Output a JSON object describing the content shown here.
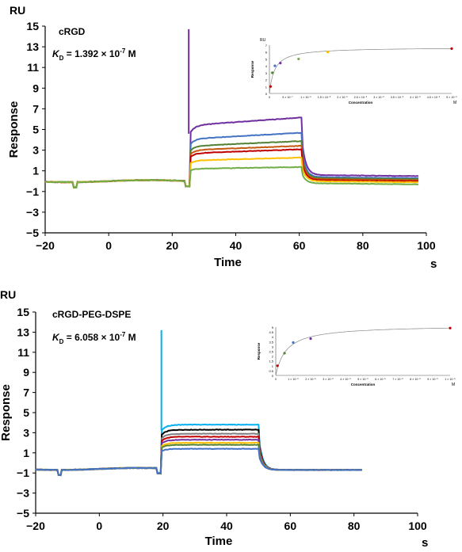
{
  "chart_data": [
    {
      "type": "line",
      "ylabel_unit": "RU",
      "ylabel": "Response",
      "xlabel": "Time",
      "x_unit": "s",
      "xlim": [
        -20,
        100
      ],
      "ylim": [
        -5,
        15
      ],
      "x_ticks": [
        "−20",
        "0",
        "20",
        "40",
        "60",
        "80",
        "100"
      ],
      "y_ticks": [
        "−5",
        "−3",
        "−1",
        "1",
        "3",
        "5",
        "7",
        "9",
        "11",
        "13",
        "15"
      ],
      "annotation": "cRGD",
      "kd_symbol": "K",
      "kd_sub": "D",
      "kd_value": " = 1.392 × 10",
      "kd_exp": "-7",
      "kd_unit": " M",
      "spike": {
        "x": 25.2,
        "y": 14.7
      },
      "series": [
        {
          "color": "#7030a0",
          "plateau": 5.4,
          "dissoc": 0.6
        },
        {
          "color": "#4472c4",
          "plateau": 4.1,
          "dissoc": 0.4
        },
        {
          "color": "#548235",
          "plateau": 3.4,
          "dissoc": 0.3
        },
        {
          "color": "#c55a11",
          "plateau": 3.0,
          "dissoc": 0.2
        },
        {
          "color": "#c00000",
          "plateau": 2.7,
          "dissoc": 0.1
        },
        {
          "color": "#ffc000",
          "plateau": 2.0,
          "dissoc": 0.0
        },
        {
          "color": "#70ad47",
          "plateau": 1.2,
          "dissoc": -0.2
        }
      ],
      "inset": {
        "ylabel_unit": "RU",
        "ylabel": "Response",
        "xlabel": "Concentration",
        "x_unit": "M",
        "ylim": [
          0,
          7
        ],
        "y_ticks": [
          "0",
          "1",
          "2",
          "3",
          "4",
          "5",
          "6",
          "7"
        ],
        "xlim": [
          0,
          5e-06
        ],
        "x_ticks": [
          "0",
          "5 × 10⁻⁷",
          "1 × 10⁻⁶",
          "1.5 × 10⁻⁶",
          "2 × 10⁻⁶",
          "2.5 × 10⁻⁶",
          "3 × 10⁻⁶",
          "3.5 × 10⁻⁶",
          "4 × 10⁻⁶",
          "4.5 × 10⁻⁶",
          "5 × 10⁻⁶"
        ],
        "points": [
          {
            "x": 3e-08,
            "y": 1.0,
            "color": "#c00000"
          },
          {
            "x": 8e-08,
            "y": 3.0,
            "color": "#548235"
          },
          {
            "x": 1.5e-07,
            "y": 4.0,
            "color": "#4472c4"
          },
          {
            "x": 3e-07,
            "y": 4.4,
            "color": "#7030a0"
          },
          {
            "x": 8e-07,
            "y": 5.0,
            "color": "#70ad47"
          },
          {
            "x": 1.6e-06,
            "y": 6.0,
            "color": "#ffc000"
          },
          {
            "x": 5e-06,
            "y": 6.5,
            "color": "#c00000"
          }
        ]
      }
    },
    {
      "type": "line",
      "ylabel_unit": "RU",
      "ylabel": "Response",
      "xlabel": "Time",
      "x_unit": "s",
      "xlim": [
        -20,
        100
      ],
      "ylim": [
        -5,
        15
      ],
      "x_ticks": [
        "−20",
        "0",
        "20",
        "40",
        "60",
        "80",
        "100"
      ],
      "y_ticks": [
        "−5",
        "−3",
        "−1",
        "1",
        "3",
        "5",
        "7",
        "9",
        "11",
        "13",
        "15"
      ],
      "annotation": "cRGD-PEG-DSPE",
      "kd_symbol": "K",
      "kd_sub": "D",
      "kd_value": " = 6.058 × 10",
      "kd_exp": "-7",
      "kd_unit": " M",
      "spike": {
        "x": 19.5,
        "y": 13.2
      },
      "series": [
        {
          "color": "#00b0f0",
          "plateau": 3.8,
          "dissoc": -0.7
        },
        {
          "color": "#000000",
          "plateau": 3.3,
          "dissoc": -0.7
        },
        {
          "color": "#808080",
          "plateau": 2.9,
          "dissoc": -0.7
        },
        {
          "color": "#c00000",
          "plateau": 2.6,
          "dissoc": -0.7
        },
        {
          "color": "#7030a0",
          "plateau": 2.3,
          "dissoc": -0.7
        },
        {
          "color": "#ffc000",
          "plateau": 2.0,
          "dissoc": -0.7
        },
        {
          "color": "#548235",
          "plateau": 1.8,
          "dissoc": -0.7
        },
        {
          "color": "#4472c4",
          "plateau": 1.4,
          "dissoc": -0.7
        }
      ],
      "inset": {
        "ylabel_unit": "",
        "ylabel": "Response",
        "xlabel": "Concentration",
        "x_unit": "M",
        "ylim": [
          0,
          5
        ],
        "y_ticks": [
          "0",
          "0.5",
          "1",
          "1.5",
          "2",
          "2.5",
          "3",
          "3.5",
          "4",
          "4.5",
          "5"
        ],
        "xlim": [
          0,
          1e-05
        ],
        "x_ticks": [
          "0",
          "1 × 10⁻⁶",
          "2 × 10⁻⁶",
          "3 × 10⁻⁶",
          "4 × 10⁻⁶",
          "5 × 10⁻⁶",
          "6 × 10⁻⁶",
          "7 × 10⁻⁶",
          "8 × 10⁻⁶",
          "9 × 10⁻⁶",
          "1 × 10⁻⁵"
        ],
        "points": [
          {
            "x": 1e-07,
            "y": 1.0,
            "color": "#c00000"
          },
          {
            "x": 5e-07,
            "y": 2.3,
            "color": "#548235"
          },
          {
            "x": 1e-06,
            "y": 3.4,
            "color": "#4472c4"
          },
          {
            "x": 2e-06,
            "y": 3.8,
            "color": "#7030a0"
          },
          {
            "x": 1e-05,
            "y": 4.9,
            "color": "#c00000"
          }
        ]
      }
    }
  ]
}
